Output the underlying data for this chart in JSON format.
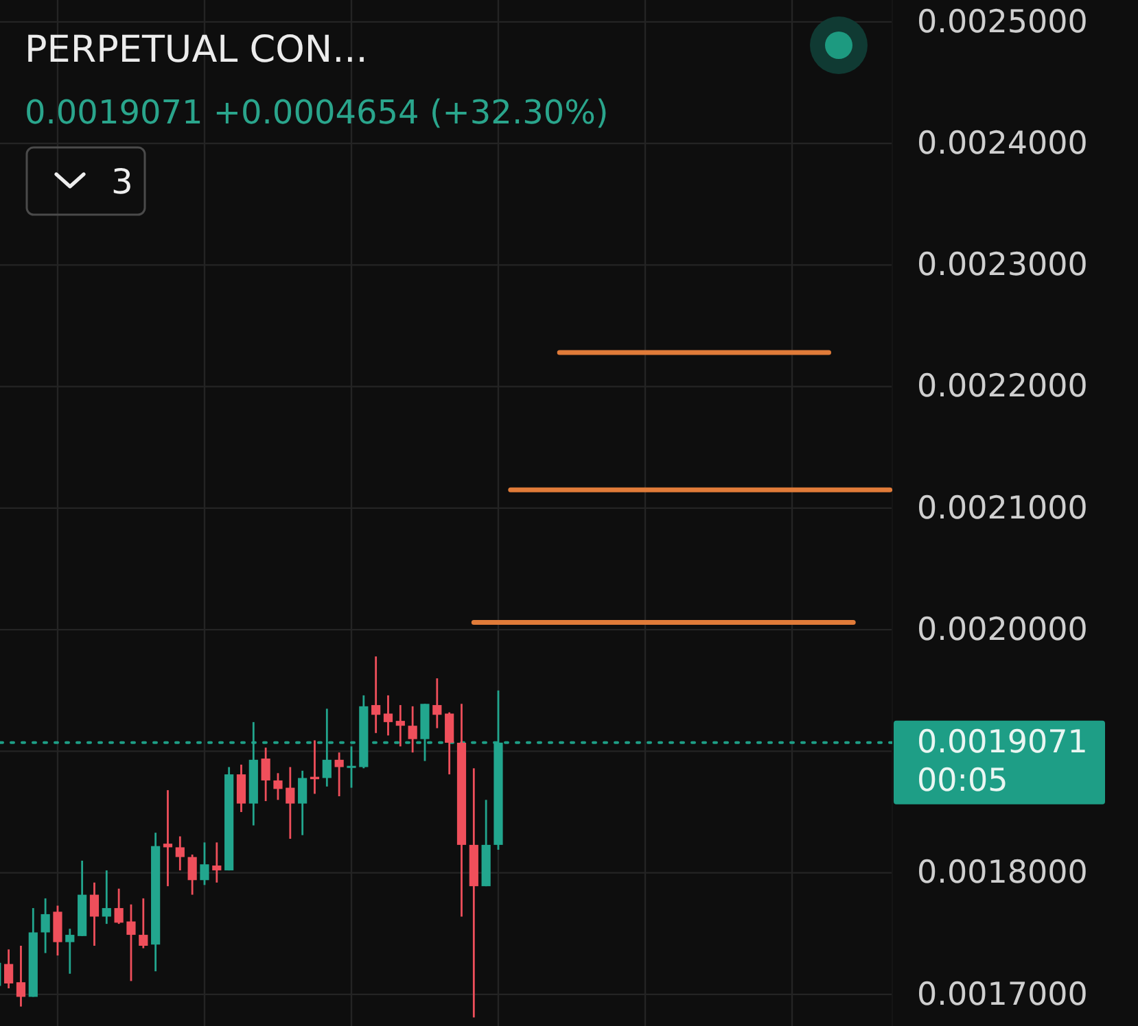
{
  "chart_data": {
    "type": "candlestick",
    "title": "PERPETUAL CON...",
    "subtitle": "0.0019071 +0.0004654 (+32.30%)",
    "annotations": [
      "00:05",
      "3"
    ],
    "categories": [
      null,
      null,
      null,
      null,
      null,
      null,
      null,
      null,
      null,
      null,
      null,
      null,
      null,
      null,
      null,
      null,
      null,
      null,
      null,
      null,
      null,
      null,
      null,
      null,
      null,
      null,
      null,
      null,
      null,
      null,
      null,
      null,
      null,
      null,
      null,
      null,
      null,
      null,
      null,
      null,
      null,
      null,
      null,
      null,
      null,
      null,
      null,
      null,
      null,
      null,
      null,
      null,
      null,
      null,
      null,
      null,
      null,
      null,
      null,
      null,
      null,
      null,
      null,
      null,
      null,
      null,
      null,
      null,
      null,
      null,
      null,
      null,
      null,
      null
    ],
    "ohlc": [
      [
        0.001707,
        0.001728,
        0.001705,
        0.001726
      ],
      [
        0.001725,
        0.001737,
        0.001705,
        0.001709
      ],
      [
        0.00171,
        0.00174,
        0.00169,
        0.001698
      ],
      [
        0.001698,
        0.001771,
        0.001698,
        0.001751
      ],
      [
        0.001751,
        0.001779,
        0.001734,
        0.001766
      ],
      [
        0.001768,
        0.001773,
        0.001732,
        0.001743
      ],
      [
        0.001743,
        0.001754,
        0.001717,
        0.001749
      ],
      [
        0.001748,
        0.00181,
        0.001748,
        0.001782
      ],
      [
        0.001782,
        0.001792,
        0.00174,
        0.001764
      ],
      [
        0.001764,
        0.001802,
        0.001758,
        0.001771
      ],
      [
        0.001771,
        0.001787,
        0.001758,
        0.001759
      ],
      [
        0.00176,
        0.001774,
        0.001711,
        0.001749
      ],
      [
        0.001749,
        0.001779,
        0.001738,
        0.00174
      ],
      [
        0.001741,
        0.001833,
        0.001719,
        0.001822
      ],
      [
        0.001824,
        0.001868,
        0.001789,
        0.001821
      ],
      [
        0.001821,
        0.00183,
        0.001802,
        0.001813
      ],
      [
        0.001813,
        0.001815,
        0.001782,
        0.001794
      ],
      [
        0.001794,
        0.001825,
        0.00179,
        0.001807
      ],
      [
        0.001806,
        0.001825,
        0.001792,
        0.001802
      ],
      [
        0.001802,
        0.001887,
        0.001802,
        0.001881
      ],
      [
        0.001881,
        0.001889,
        0.00185,
        0.001857
      ],
      [
        0.001857,
        0.001924,
        0.001839,
        0.001893
      ],
      [
        0.001894,
        0.001903,
        0.001859,
        0.001876
      ],
      [
        0.001876,
        0.001882,
        0.00186,
        0.001869
      ],
      [
        0.00187,
        0.001887,
        0.001828,
        0.001857
      ],
      [
        0.001857,
        0.001884,
        0.001831,
        0.001878
      ],
      [
        0.001879,
        0.001909,
        0.001865,
        0.001877
      ],
      [
        0.001878,
        0.001935,
        0.001871,
        0.001893
      ],
      [
        0.001893,
        0.001899,
        0.001863,
        0.001887
      ],
      [
        0.001887,
        0.001904,
        0.00187,
        0.001888
      ],
      [
        0.001887,
        0.001946,
        0.001886,
        0.001937
      ],
      [
        0.001938,
        0.001978,
        0.001915,
        0.00193
      ],
      [
        0.001931,
        0.001946,
        0.001913,
        0.001924
      ],
      [
        0.001925,
        0.001938,
        0.001904,
        0.001921
      ],
      [
        0.001921,
        0.001937,
        0.001899,
        0.00191
      ],
      [
        0.00191,
        0.001939,
        0.001892,
        0.001939
      ],
      [
        0.001938,
        0.00196,
        0.001919,
        0.00193
      ],
      [
        0.001931,
        0.001932,
        0.001881,
        0.001907
      ],
      [
        0.001907,
        0.001939,
        0.001764,
        0.001823
      ],
      [
        0.001823,
        0.001886,
        0.001681,
        0.001789
      ],
      [
        0.001789,
        0.00186,
        0.001789,
        0.001823
      ],
      [
        0.001823,
        0.00195,
        0.001819,
        0.0019071
      ],
      null,
      null,
      null,
      null,
      null,
      null,
      null,
      null,
      null,
      null,
      null,
      null,
      null,
      null,
      null,
      null,
      null,
      null,
      null,
      null,
      null,
      null,
      null,
      null,
      null,
      null,
      null,
      null,
      null,
      null,
      null,
      null
    ],
    "colors": [
      "#22a68e",
      "#ef4f5b",
      "#ef4f5b",
      "#22a68e",
      "#22a68e",
      "#ef4f5b",
      "#22a68e",
      "#22a68e",
      "#ef4f5b",
      "#22a68e",
      "#ef4f5b",
      "#ef4f5b",
      "#ef4f5b",
      "#22a68e",
      "#ef4f5b",
      "#ef4f5b",
      "#ef4f5b",
      "#22a68e",
      "#ef4f5b",
      "#22a68e",
      "#ef4f5b",
      "#22a68e",
      "#ef4f5b",
      "#ef4f5b",
      "#ef4f5b",
      "#22a68e",
      "#ef4f5b",
      "#22a68e",
      "#ef4f5b",
      "#22a68e",
      "#22a68e",
      "#ef4f5b",
      "#ef4f5b",
      "#ef4f5b",
      "#ef4f5b",
      "#22a68e",
      "#ef4f5b",
      "#ef4f5b",
      "#ef4f5b",
      "#ef4f5b",
      "#22a68e",
      "#22a68e",
      null,
      null,
      null,
      null,
      null,
      null,
      null,
      null,
      null,
      null,
      null,
      null,
      null,
      null,
      null,
      null,
      null,
      null,
      null,
      null,
      null,
      null,
      null,
      null,
      null,
      null,
      null,
      null,
      null,
      null,
      null,
      null
    ],
    "series": [
      {
        "type": "line",
        "color": "#e07b39",
        "values": [
          null,
          null,
          null,
          null,
          null,
          null,
          null,
          null,
          null,
          null,
          null,
          null,
          null,
          null,
          null,
          null,
          null,
          null,
          null,
          null,
          null,
          null,
          null,
          null,
          null,
          null,
          null,
          null,
          null,
          null,
          null,
          null,
          null,
          null,
          null,
          null,
          null,
          null,
          null,
          null,
          null,
          null,
          null,
          null,
          null,
          null,
          0.002228,
          0.002228,
          0.002228,
          0.002228,
          0.002228,
          0.002228,
          0.002228,
          0.002228,
          0.002228,
          0.002228,
          0.002228,
          0.002228,
          0.002228,
          0.002228,
          0.002228,
          0.002228,
          0.002228,
          0.002228,
          0.002228,
          0.002228,
          0.002228,
          0.002228,
          0.002228,
          null,
          null,
          null,
          null,
          null
        ]
      },
      {
        "type": "line",
        "color": "#e07b39",
        "values": [
          null,
          null,
          null,
          null,
          null,
          null,
          null,
          null,
          null,
          null,
          null,
          null,
          null,
          null,
          null,
          null,
          null,
          null,
          null,
          null,
          null,
          null,
          null,
          null,
          null,
          null,
          null,
          null,
          null,
          null,
          null,
          null,
          null,
          null,
          null,
          null,
          null,
          null,
          null,
          null,
          null,
          null,
          0.002115,
          0.002115,
          0.002115,
          0.002115,
          0.002115,
          0.002115,
          0.002115,
          0.002115,
          0.002115,
          0.002115,
          0.002115,
          0.002115,
          0.002115,
          0.002115,
          0.002115,
          0.002115,
          0.002115,
          0.002115,
          0.002115,
          0.002115,
          0.002115,
          0.002115,
          0.002115,
          0.002115,
          0.002115,
          0.002115,
          0.002115,
          0.002115,
          0.002115,
          0.002115,
          0.002115,
          0.002115
        ]
      },
      {
        "type": "line",
        "color": "#e07b39",
        "values": [
          null,
          null,
          null,
          null,
          null,
          null,
          null,
          null,
          null,
          null,
          null,
          null,
          null,
          null,
          null,
          null,
          null,
          null,
          null,
          null,
          null,
          null,
          null,
          null,
          null,
          null,
          null,
          null,
          null,
          null,
          null,
          null,
          null,
          null,
          null,
          null,
          null,
          null,
          null,
          0.002006,
          0.002006,
          0.002006,
          0.002006,
          0.002006,
          0.002006,
          0.002006,
          0.002006,
          0.002006,
          0.002006,
          0.002006,
          0.002006,
          0.002006,
          0.002006,
          0.002006,
          0.002006,
          0.002006,
          0.002006,
          0.002006,
          0.002006,
          0.002006,
          0.002006,
          0.002006,
          0.002006,
          0.002006,
          0.002006,
          0.002006,
          0.002006,
          0.002006,
          0.002006,
          0.002006,
          0.002006,
          null,
          null,
          null
        ]
      }
    ],
    "ylim": [
      0.001674,
      0.002518
    ],
    "yticks": [
      {
        "value": 0.0017,
        "label": "0.0017000"
      },
      {
        "value": 0.0018,
        "label": "0.0018000"
      },
      {
        "value": 0.0019,
        "label": null
      },
      {
        "value": 0.002,
        "label": "0.0020000"
      },
      {
        "value": 0.0021,
        "label": "0.0021000"
      },
      {
        "value": 0.0022,
        "label": "0.0022000"
      },
      {
        "value": 0.0023,
        "label": "0.0023000"
      },
      {
        "value": 0.0024,
        "label": "0.0024000"
      },
      {
        "value": 0.0025,
        "label": "0.0025000"
      }
    ],
    "grid": true,
    "tick_labels": "y",
    "ref_lines": [
      {
        "axis": "y",
        "value": 0.0019071,
        "label": "0.0019071",
        "color": "#1e9e86",
        "line_style": "dotted"
      }
    ]
  }
}
